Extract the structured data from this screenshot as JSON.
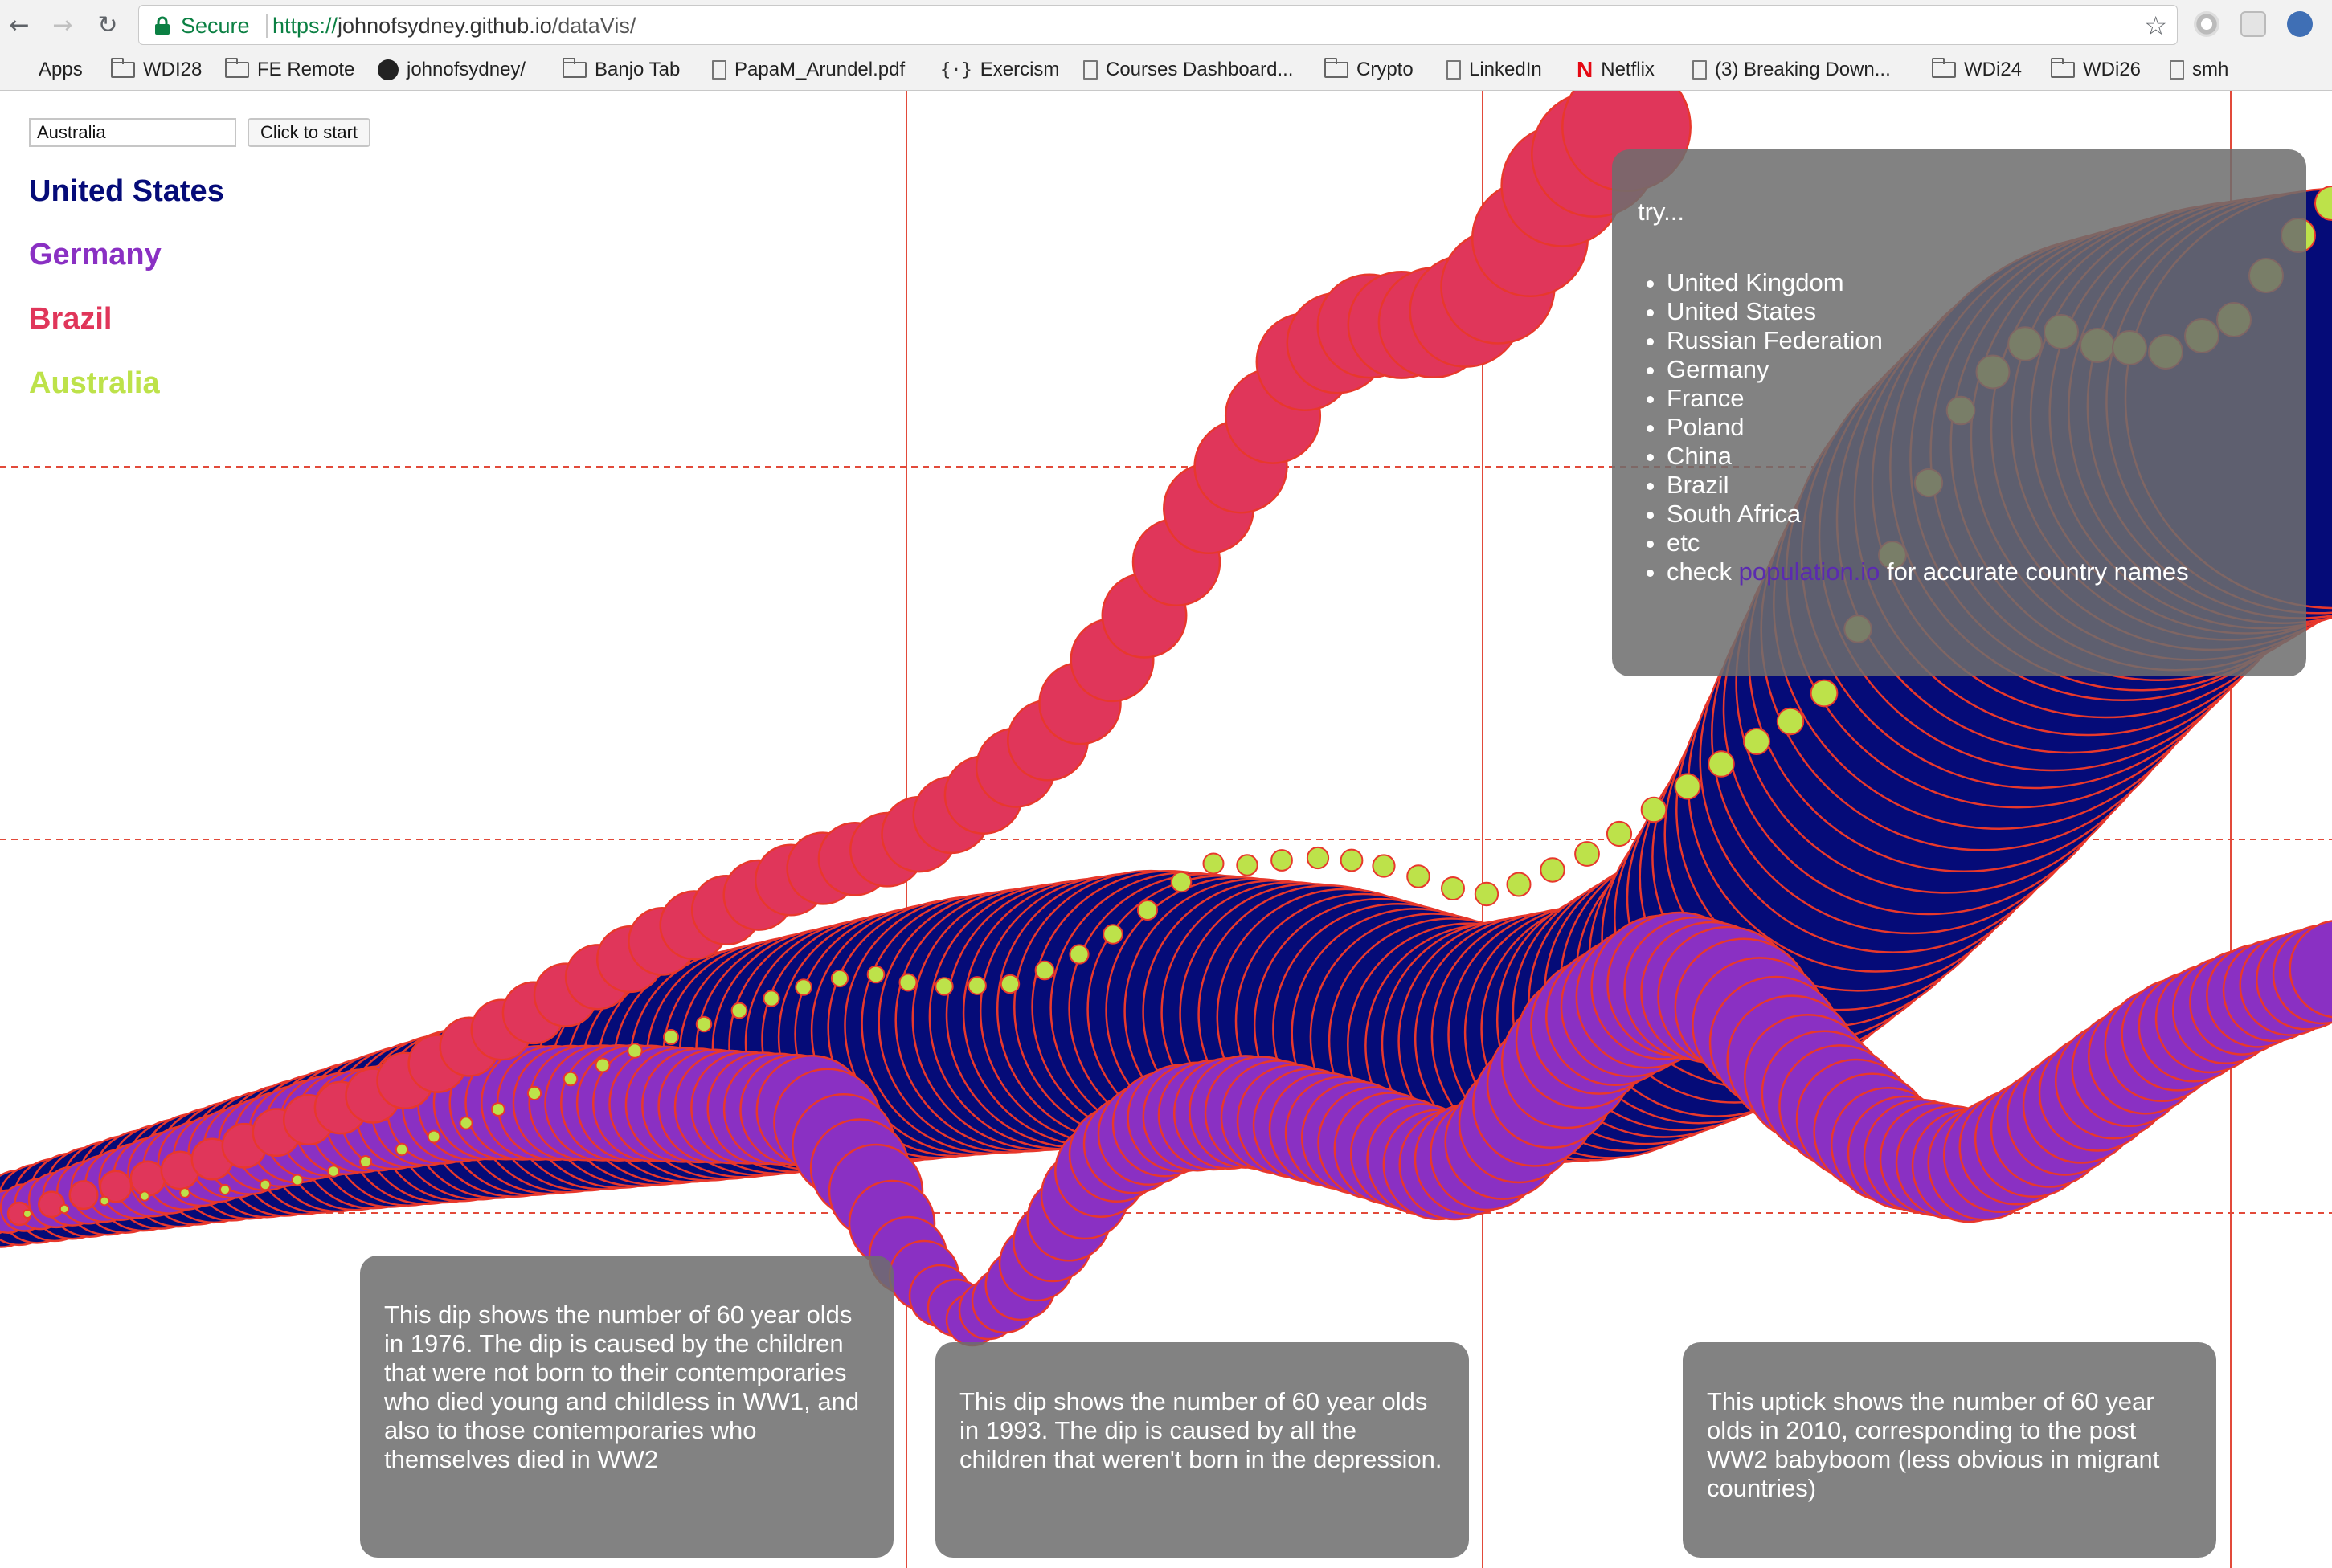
{
  "browser": {
    "secure_label": "Secure",
    "url_scheme": "https://",
    "url_host": "johnofsydney.github.io",
    "url_path": "/dataVis/",
    "bookmarks": [
      {
        "label": "Apps",
        "icon": "apps-grid-icon"
      },
      {
        "label": "WDI28",
        "icon": "folder-icon"
      },
      {
        "label": "FE Remote",
        "icon": "folder-icon"
      },
      {
        "label": "johnofsydney/",
        "icon": "github-icon"
      },
      {
        "label": "Banjo Tab",
        "icon": "folder-icon"
      },
      {
        "label": "PapaM_Arundel.pdf",
        "icon": "page-icon"
      },
      {
        "label": "Exercism",
        "icon": "exercism-icon"
      },
      {
        "label": "Courses Dashboard...",
        "icon": "page-icon"
      },
      {
        "label": "Crypto",
        "icon": "folder-icon"
      },
      {
        "label": "LinkedIn",
        "icon": "page-icon"
      },
      {
        "label": "Netflix",
        "icon": "netflix-icon"
      },
      {
        "label": "(3) Breaking Down...",
        "icon": "page-icon"
      },
      {
        "label": "WDi24",
        "icon": "folder-icon"
      },
      {
        "label": "WDi26",
        "icon": "folder-icon"
      },
      {
        "label": "smh",
        "icon": "page-icon"
      }
    ]
  },
  "controls": {
    "country_input_value": "Australia",
    "start_button_label": "Click to start"
  },
  "legend": [
    {
      "label": "United States",
      "color": "#050b78"
    },
    {
      "label": "Germany",
      "color": "#8a30c3"
    },
    {
      "label": "Brazil",
      "color": "#e0365a"
    },
    {
      "label": "Australia",
      "color": "#bde24a"
    }
  ],
  "try_panel": {
    "heading": "try...",
    "items": [
      "United Kingdom",
      "United States",
      "Russian Federation",
      "Germany",
      "France",
      "Poland",
      "China",
      "Brazil",
      "South Africa",
      "etc"
    ],
    "check_prefix": "check ",
    "check_link": "population.io",
    "check_suffix": " for accurate country names"
  },
  "annotations": [
    "This dip shows the number of 60 year olds in 1976. The dip is caused by the children that were not born to their contemporaries who died young and childless in WW1, and also to those contemporaries who themselves died in WW2",
    "This dip shows the number of 60 year olds in 1993. The dip is caused by all the children that weren't born in the depression.",
    "This uptick shows the number of 60 year olds in 2010, corresponding to the post WW2 babyboom (less obvious in migrant countries)"
  ],
  "colors": {
    "stroke": "#e8382c",
    "guide": "#e24a3a"
  }
}
